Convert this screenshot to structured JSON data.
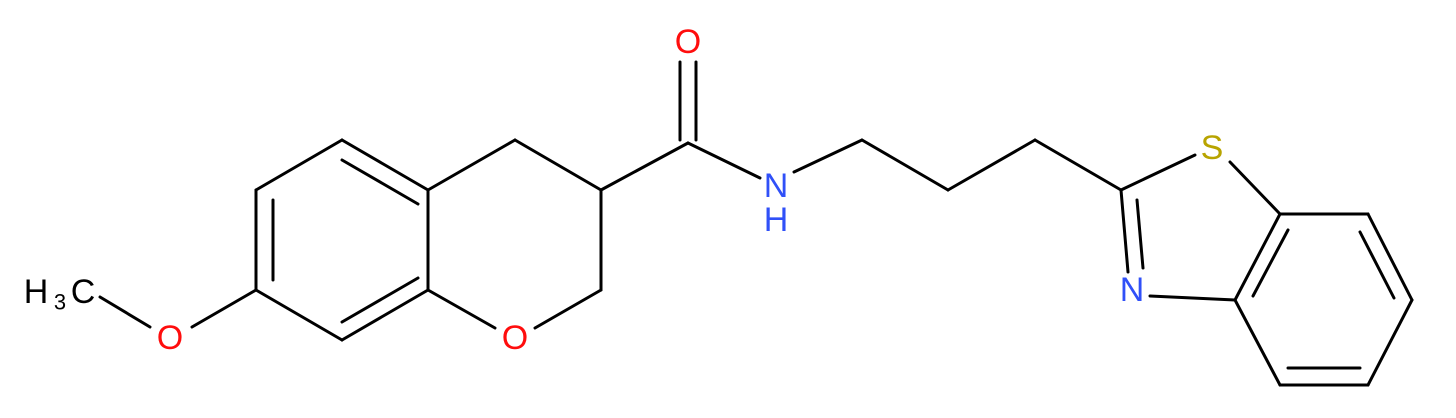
{
  "atoms": [
    "O",
    "N",
    "H",
    "S",
    "N",
    "O",
    "O"
  ],
  "methyl": {
    "h": "H",
    "subscript": "3",
    "c": "C"
  }
}
